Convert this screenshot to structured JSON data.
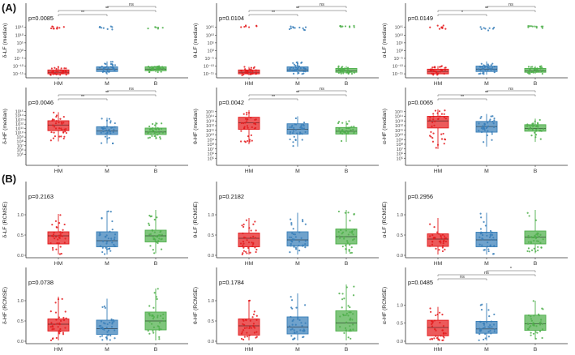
{
  "section_labels": [
    "(A)",
    "(B)"
  ],
  "category_labels": [
    "HM",
    "M",
    "B"
  ],
  "colors": {
    "HM": "#e41a1c",
    "M": "#377eb8",
    "B": "#4daf4a"
  },
  "chart_data": [
    {
      "type": "box",
      "section": "(A)",
      "ylabel": "δ-LF (median)",
      "pvalue": "p=0.0085",
      "log_scale": true,
      "ylim_exp": [
        -16,
        18
      ],
      "yticks": [
        "10⁻¹⁵",
        "10⁻¹⁰",
        "10⁻⁵",
        "10⁰",
        "10⁵",
        "10¹⁰",
        "10¹⁵"
      ],
      "ytick_exps": [
        -15,
        -10,
        -5,
        0,
        5,
        10,
        15
      ],
      "categories": [
        "HM",
        "M",
        "B"
      ],
      "series": [
        {
          "name": "HM",
          "q1": -15,
          "median": -14,
          "q3": -12.5,
          "whisker_low": -16,
          "whisker_high": -10.5,
          "upper_cluster": [
            14,
            16
          ]
        },
        {
          "name": "M",
          "q1": -13.5,
          "median": -12,
          "q3": -10.5,
          "whisker_low": -15.5,
          "whisker_high": -7,
          "upper_cluster": [
            13,
            16
          ]
        },
        {
          "name": "B",
          "q1": -13,
          "median": -12,
          "q3": -10.5,
          "whisker_low": -14,
          "whisker_high": -10,
          "upper_cluster": [
            14,
            15.5
          ]
        }
      ],
      "comparisons": [
        {
          "pair": [
            "HM",
            "M"
          ],
          "label": "**"
        },
        {
          "pair": [
            "HM",
            "B"
          ],
          "label": "**"
        },
        {
          "pair": [
            "M",
            "B"
          ],
          "label": "ns"
        }
      ]
    },
    {
      "type": "box",
      "section": "(A)",
      "ylabel": "θ-LF (median)",
      "pvalue": "p=0.0104",
      "log_scale": true,
      "ylim_exp": [
        -16,
        18
      ],
      "yticks": [
        "10⁻¹⁵",
        "10⁻¹⁰",
        "10⁻⁵",
        "10⁰",
        "10⁵",
        "10¹⁰",
        "10¹⁵"
      ],
      "ytick_exps": [
        -15,
        -10,
        -5,
        0,
        5,
        10,
        15
      ],
      "categories": [
        "HM",
        "M",
        "B"
      ],
      "series": [
        {
          "name": "HM",
          "q1": -15,
          "median": -14,
          "q3": -12.5,
          "whisker_low": -16,
          "whisker_high": -10.5,
          "upper_cluster": [
            15,
            16.5
          ]
        },
        {
          "name": "M",
          "q1": -13.5,
          "median": -12.5,
          "q3": -10.5,
          "whisker_low": -15.5,
          "whisker_high": -7,
          "upper_cluster": [
            13,
            16.5
          ]
        },
        {
          "name": "B",
          "q1": -14,
          "median": -13,
          "q3": -11.5,
          "whisker_low": -15,
          "whisker_high": -10,
          "upper_cluster": [
            15,
            16
          ]
        }
      ],
      "comparisons": [
        {
          "pair": [
            "HM",
            "M"
          ],
          "label": "**"
        },
        {
          "pair": [
            "HM",
            "B"
          ],
          "label": "**"
        },
        {
          "pair": [
            "M",
            "B"
          ],
          "label": "ns"
        }
      ]
    },
    {
      "type": "box",
      "section": "(A)",
      "ylabel": "α-LF (median)",
      "pvalue": "p=0.0149",
      "log_scale": true,
      "ylim_exp": [
        -16,
        18
      ],
      "yticks": [
        "10⁻¹⁵",
        "10⁻¹⁰",
        "10⁻⁵",
        "10⁰",
        "10⁵",
        "10¹⁰",
        "10¹⁵"
      ],
      "ytick_exps": [
        -15,
        -10,
        -5,
        0,
        5,
        10,
        15
      ],
      "categories": [
        "HM",
        "M",
        "B"
      ],
      "series": [
        {
          "name": "HM",
          "q1": -15,
          "median": -13.5,
          "q3": -12,
          "whisker_low": -16,
          "whisker_high": -10,
          "upper_cluster": [
            14,
            16.5
          ]
        },
        {
          "name": "M",
          "q1": -13.5,
          "median": -12,
          "q3": -10,
          "whisker_low": -15.5,
          "whisker_high": -7,
          "upper_cluster": [
            13,
            16.5
          ]
        },
        {
          "name": "B",
          "q1": -14,
          "median": -13,
          "q3": -11.5,
          "whisker_low": -15,
          "whisker_high": -10,
          "upper_cluster": [
            14.5,
            16
          ]
        }
      ],
      "comparisons": [
        {
          "pair": [
            "HM",
            "M"
          ],
          "label": "*"
        },
        {
          "pair": [
            "HM",
            "B"
          ],
          "label": "**"
        },
        {
          "pair": [
            "M",
            "B"
          ],
          "label": "ns"
        }
      ]
    },
    {
      "type": "box",
      "section": "(A)",
      "ylabel": "δ-HF (median)",
      "pvalue": "p=0.0046",
      "log_scale": true,
      "ylim_exp": [
        3,
        16
      ],
      "yticks": [
        "10⁵",
        "10⁶",
        "10⁷",
        "10⁸",
        "10⁹",
        "10¹⁰",
        "10¹¹",
        "10¹²",
        "10¹³",
        "10¹⁴",
        "10¹⁵"
      ],
      "ytick_exps": [
        5,
        6,
        7,
        8,
        9,
        10,
        11,
        12,
        13,
        14,
        15
      ],
      "categories": [
        "HM",
        "M",
        "B"
      ],
      "series": [
        {
          "name": "HM",
          "q1": 10.5,
          "median": 11.8,
          "q3": 12.8,
          "whisker_low": 8,
          "whisker_high": 14.8
        },
        {
          "name": "M",
          "q1": 9.6,
          "median": 10.4,
          "q3": 11.4,
          "whisker_low": 7.5,
          "whisker_high": 13.5
        },
        {
          "name": "B",
          "q1": 9.6,
          "median": 10.2,
          "q3": 11.1,
          "whisker_low": 8.5,
          "whisker_high": 12.5
        }
      ],
      "comparisons": [
        {
          "pair": [
            "HM",
            "M"
          ],
          "label": "**"
        },
        {
          "pair": [
            "HM",
            "B"
          ],
          "label": "**"
        },
        {
          "pair": [
            "M",
            "B"
          ],
          "label": "ns"
        }
      ]
    },
    {
      "type": "box",
      "section": "(A)",
      "ylabel": "θ-HF (median)",
      "pvalue": "p=0.0042",
      "log_scale": true,
      "ylim_exp": [
        4,
        16
      ],
      "yticks": [
        "10⁵",
        "10⁶",
        "10⁷",
        "10⁸",
        "10⁹",
        "10¹⁰",
        "10¹¹",
        "10¹²",
        "10¹³",
        "10¹⁴",
        "10¹⁵"
      ],
      "ytick_exps": [
        5,
        6,
        7,
        8,
        9,
        10,
        11,
        12,
        13,
        14,
        15
      ],
      "categories": [
        "HM",
        "M",
        "B"
      ],
      "series": [
        {
          "name": "HM",
          "q1": 11.2,
          "median": 12.6,
          "q3": 13.8,
          "whisker_low": 8,
          "whisker_high": 15.3
        },
        {
          "name": "M",
          "q1": 10.2,
          "median": 11.2,
          "q3": 12.4,
          "whisker_low": 7.5,
          "whisker_high": 14
        },
        {
          "name": "B",
          "q1": 10.2,
          "median": 10.8,
          "q3": 11.6,
          "whisker_low": 8.5,
          "whisker_high": 13
        }
      ],
      "comparisons": [
        {
          "pair": [
            "HM",
            "M"
          ],
          "label": "**"
        },
        {
          "pair": [
            "HM",
            "B"
          ],
          "label": "**"
        },
        {
          "pair": [
            "M",
            "B"
          ],
          "label": "ns"
        }
      ]
    },
    {
      "type": "box",
      "section": "(A)",
      "ylabel": "α-HF (median)",
      "pvalue": "p=0.0065",
      "log_scale": true,
      "ylim_exp": [
        4,
        16
      ],
      "yticks": [
        "10⁵",
        "10⁶",
        "10⁷",
        "10⁸",
        "10⁹",
        "10¹⁰",
        "10¹¹",
        "10¹²",
        "10¹³",
        "10¹⁴",
        "10¹⁵"
      ],
      "ytick_exps": [
        5,
        6,
        7,
        8,
        9,
        10,
        11,
        12,
        13,
        14,
        15
      ],
      "categories": [
        "HM",
        "M",
        "B"
      ],
      "series": [
        {
          "name": "HM",
          "q1": 11.5,
          "median": 13,
          "q3": 14,
          "whisker_low": 7,
          "whisker_high": 15.5
        },
        {
          "name": "M",
          "q1": 10.6,
          "median": 11.8,
          "q3": 12.9,
          "whisker_low": 7.5,
          "whisker_high": 14.5
        },
        {
          "name": "B",
          "q1": 10.8,
          "median": 11.4,
          "q3": 12.2,
          "whisker_low": 8.5,
          "whisker_high": 13.5
        }
      ],
      "comparisons": [
        {
          "pair": [
            "HM",
            "M"
          ],
          "label": "**"
        },
        {
          "pair": [
            "HM",
            "B"
          ],
          "label": "**"
        },
        {
          "pair": [
            "M",
            "B"
          ],
          "label": "ns"
        }
      ]
    },
    {
      "type": "box",
      "section": "(B)",
      "ylabel": "δ-LF (RCMSE)",
      "pvalue": "p=0.2163",
      "log_scale": false,
      "ylim": [
        0,
        1.5
      ],
      "yticks": [
        "0.0",
        "0.5",
        "1.0"
      ],
      "ytick_vals": [
        0,
        0.5,
        1.0
      ],
      "categories": [
        "HM",
        "M",
        "B"
      ],
      "series": [
        {
          "name": "HM",
          "q1": 0.28,
          "median": 0.48,
          "q3": 0.58,
          "whisker_low": 0.02,
          "whisker_high": 1.02
        },
        {
          "name": "M",
          "q1": 0.21,
          "median": 0.36,
          "q3": 0.58,
          "whisker_low": 0.02,
          "whisker_high": 1.1
        },
        {
          "name": "B",
          "q1": 0.33,
          "median": 0.48,
          "q3": 0.62,
          "whisker_low": 0.05,
          "whisker_high": 1.12
        }
      ],
      "comparisons": []
    },
    {
      "type": "box",
      "section": "(B)",
      "ylabel": "θ-LF (RCMSE)",
      "pvalue": "p=0.2182",
      "log_scale": false,
      "ylim": [
        0,
        1.5
      ],
      "yticks": [
        "0.0",
        "0.5",
        "1.0"
      ],
      "ytick_vals": [
        0,
        0.5,
        1.0
      ],
      "categories": [
        "HM",
        "M",
        "B"
      ],
      "series": [
        {
          "name": "HM",
          "q1": 0.21,
          "median": 0.42,
          "q3": 0.55,
          "whisker_low": 0.02,
          "whisker_high": 0.92
        },
        {
          "name": "M",
          "q1": 0.23,
          "median": 0.38,
          "q3": 0.58,
          "whisker_low": 0.02,
          "whisker_high": 1.05
        },
        {
          "name": "B",
          "q1": 0.28,
          "median": 0.46,
          "q3": 0.65,
          "whisker_low": 0.04,
          "whisker_high": 1.12
        }
      ],
      "comparisons": []
    },
    {
      "type": "box",
      "section": "(B)",
      "ylabel": "α-LF (RCMSE)",
      "pvalue": "p=0.2956",
      "log_scale": false,
      "ylim": [
        0,
        1.5
      ],
      "yticks": [
        "0.0",
        "0.5",
        "1.0"
      ],
      "ytick_vals": [
        0,
        0.5,
        1.0
      ],
      "categories": [
        "HM",
        "M",
        "B"
      ],
      "series": [
        {
          "name": "HM",
          "q1": 0.22,
          "median": 0.4,
          "q3": 0.53,
          "whisker_low": 0.02,
          "whisker_high": 0.92
        },
        {
          "name": "M",
          "q1": 0.21,
          "median": 0.38,
          "q3": 0.57,
          "whisker_low": 0.02,
          "whisker_high": 1.05
        },
        {
          "name": "B",
          "q1": 0.28,
          "median": 0.45,
          "q3": 0.6,
          "whisker_low": 0.05,
          "whisker_high": 1.12
        }
      ],
      "comparisons": []
    },
    {
      "type": "box",
      "section": "(B)",
      "ylabel": "δ-HF (RCMSE)",
      "pvalue": "p=0.0738",
      "log_scale": false,
      "ylim": [
        0,
        1.5
      ],
      "yticks": [
        "0.0",
        "0.5",
        "1.0"
      ],
      "ytick_vals": [
        0,
        0.5,
        1.0
      ],
      "categories": [
        "HM",
        "M",
        "B"
      ],
      "series": [
        {
          "name": "HM",
          "q1": 0.25,
          "median": 0.42,
          "q3": 0.55,
          "whisker_low": 0.02,
          "whisker_high": 1.1
        },
        {
          "name": "M",
          "q1": 0.17,
          "median": 0.31,
          "q3": 0.52,
          "whisker_low": 0.02,
          "whisker_high": 1.05
        },
        {
          "name": "B",
          "q1": 0.28,
          "median": 0.5,
          "q3": 0.72,
          "whisker_low": 0.02,
          "whisker_high": 1.3
        }
      ],
      "comparisons": []
    },
    {
      "type": "box",
      "section": "(B)",
      "ylabel": "θ-HF (RCMSE)",
      "pvalue": "p=0.1784",
      "log_scale": false,
      "ylim": [
        0,
        1.5
      ],
      "yticks": [
        "0.0",
        "0.5",
        "1.0"
      ],
      "ytick_vals": [
        0,
        0.5,
        1.0
      ],
      "categories": [
        "HM",
        "M",
        "B"
      ],
      "series": [
        {
          "name": "HM",
          "q1": 0.15,
          "median": 0.38,
          "q3": 0.55,
          "whisker_low": 0.02,
          "whisker_high": 1.02
        },
        {
          "name": "M",
          "q1": 0.18,
          "median": 0.35,
          "q3": 0.6,
          "whisker_low": 0.02,
          "whisker_high": 1.18
        },
        {
          "name": "B",
          "q1": 0.25,
          "median": 0.45,
          "q3": 0.75,
          "whisker_low": 0.02,
          "whisker_high": 1.4
        }
      ],
      "comparisons": []
    },
    {
      "type": "box",
      "section": "(B)",
      "ylabel": "α-HF (RCMSE)",
      "pvalue": "p=0.0485",
      "log_scale": false,
      "ylim": [
        0,
        1.5
      ],
      "yticks": [
        "0.0",
        "0.5",
        "1.0"
      ],
      "ytick_vals": [
        0,
        0.5,
        1.0
      ],
      "categories": [
        "HM",
        "M",
        "B"
      ],
      "series": [
        {
          "name": "HM",
          "q1": 0.15,
          "median": 0.38,
          "q3": 0.58,
          "whisker_low": 0.02,
          "whisker_high": 0.95
        },
        {
          "name": "M",
          "q1": 0.22,
          "median": 0.34,
          "q3": 0.55,
          "whisker_low": 0.02,
          "whisker_high": 1.05
        },
        {
          "name": "B",
          "q1": 0.3,
          "median": 0.48,
          "q3": 0.72,
          "whisker_low": 0.05,
          "whisker_high": 1.12
        }
      ],
      "comparisons": [
        {
          "pair": [
            "HM",
            "M"
          ],
          "label": "ns"
        },
        {
          "pair": [
            "HM",
            "B"
          ],
          "label": "ns"
        },
        {
          "pair": [
            "M",
            "B"
          ],
          "label": "*"
        }
      ]
    }
  ]
}
